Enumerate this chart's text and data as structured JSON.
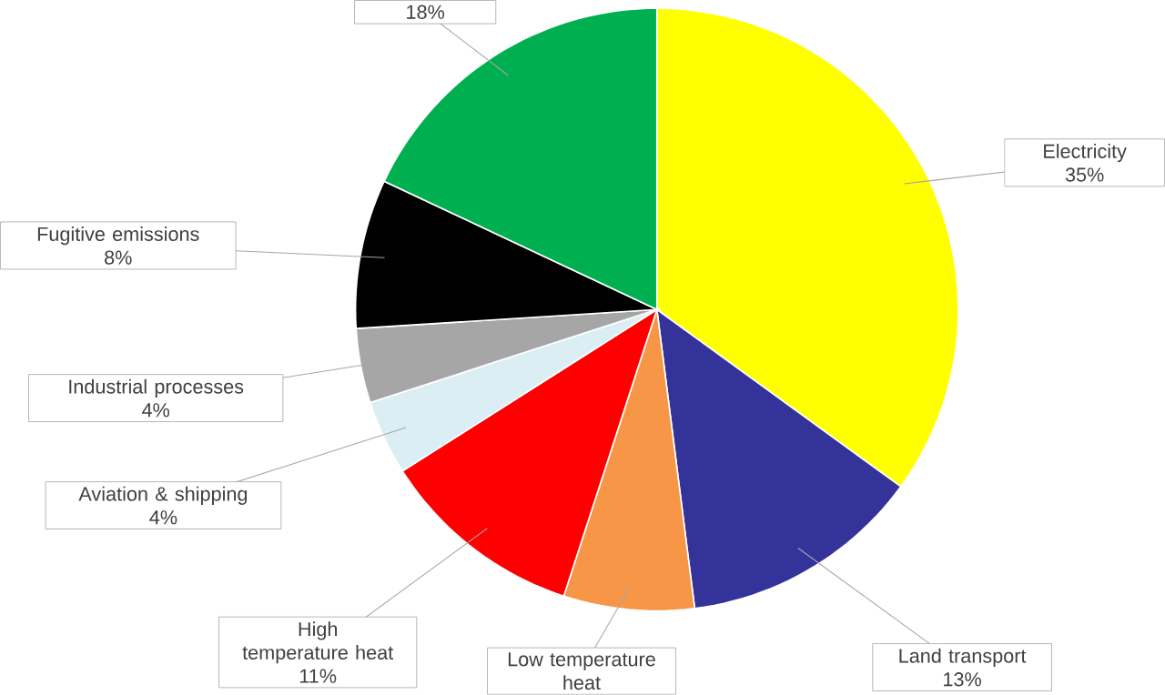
{
  "chart_data": {
    "type": "pie",
    "categories": [
      "Electricity",
      "Land transport",
      "Low temperature heat",
      "High temperature heat",
      "Aviation & shipping",
      "Industrial processes",
      "Fugitive emissions",
      null
    ],
    "values": [
      35,
      13,
      7,
      11,
      4,
      4,
      8,
      18
    ],
    "value_labels": [
      "35%",
      "13%",
      null,
      "11%",
      "4%",
      "4%",
      "8%",
      "18%"
    ],
    "colors": [
      "#ffff00",
      "#333399",
      "#f79646",
      "#ff0000",
      "#dbeef4",
      "#a6a6a6",
      "#000000",
      "#00b050"
    ]
  }
}
